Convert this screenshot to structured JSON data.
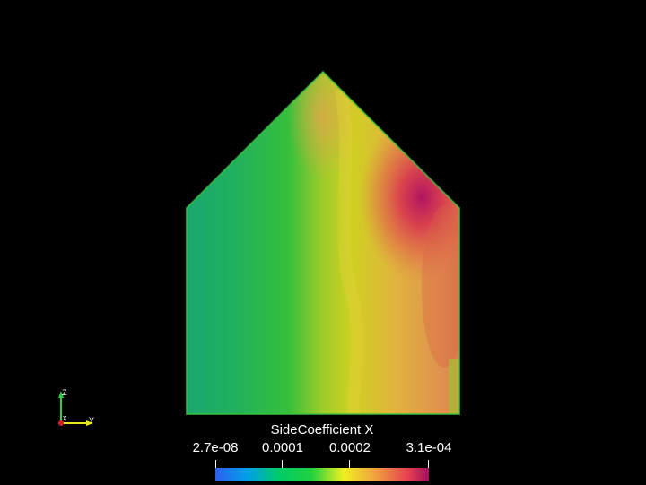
{
  "colorbar": {
    "title": "SideCoefficient X",
    "ticks": [
      "2.7e-08",
      "0.0001",
      "0.0002",
      "3.1e-04"
    ],
    "colormap": [
      "#2f5ff0",
      "#00a0e8",
      "#00cc66",
      "#20d040",
      "#f0f020",
      "#f0a040",
      "#e84050",
      "#a01060"
    ]
  },
  "orientation_axes": {
    "z_label": "Z",
    "x_label": "x",
    "y_label": "Y",
    "colors": {
      "z": "#2ecc40",
      "y": "#e8e820",
      "x": "#d02020"
    }
  },
  "field": {
    "colors": {
      "low": "#1aa572",
      "mid_low": "#36bf3c",
      "mid": "#cfd021",
      "mid_high": "#e0a84a",
      "high": "#d8384e",
      "peak": "#b01460"
    }
  }
}
